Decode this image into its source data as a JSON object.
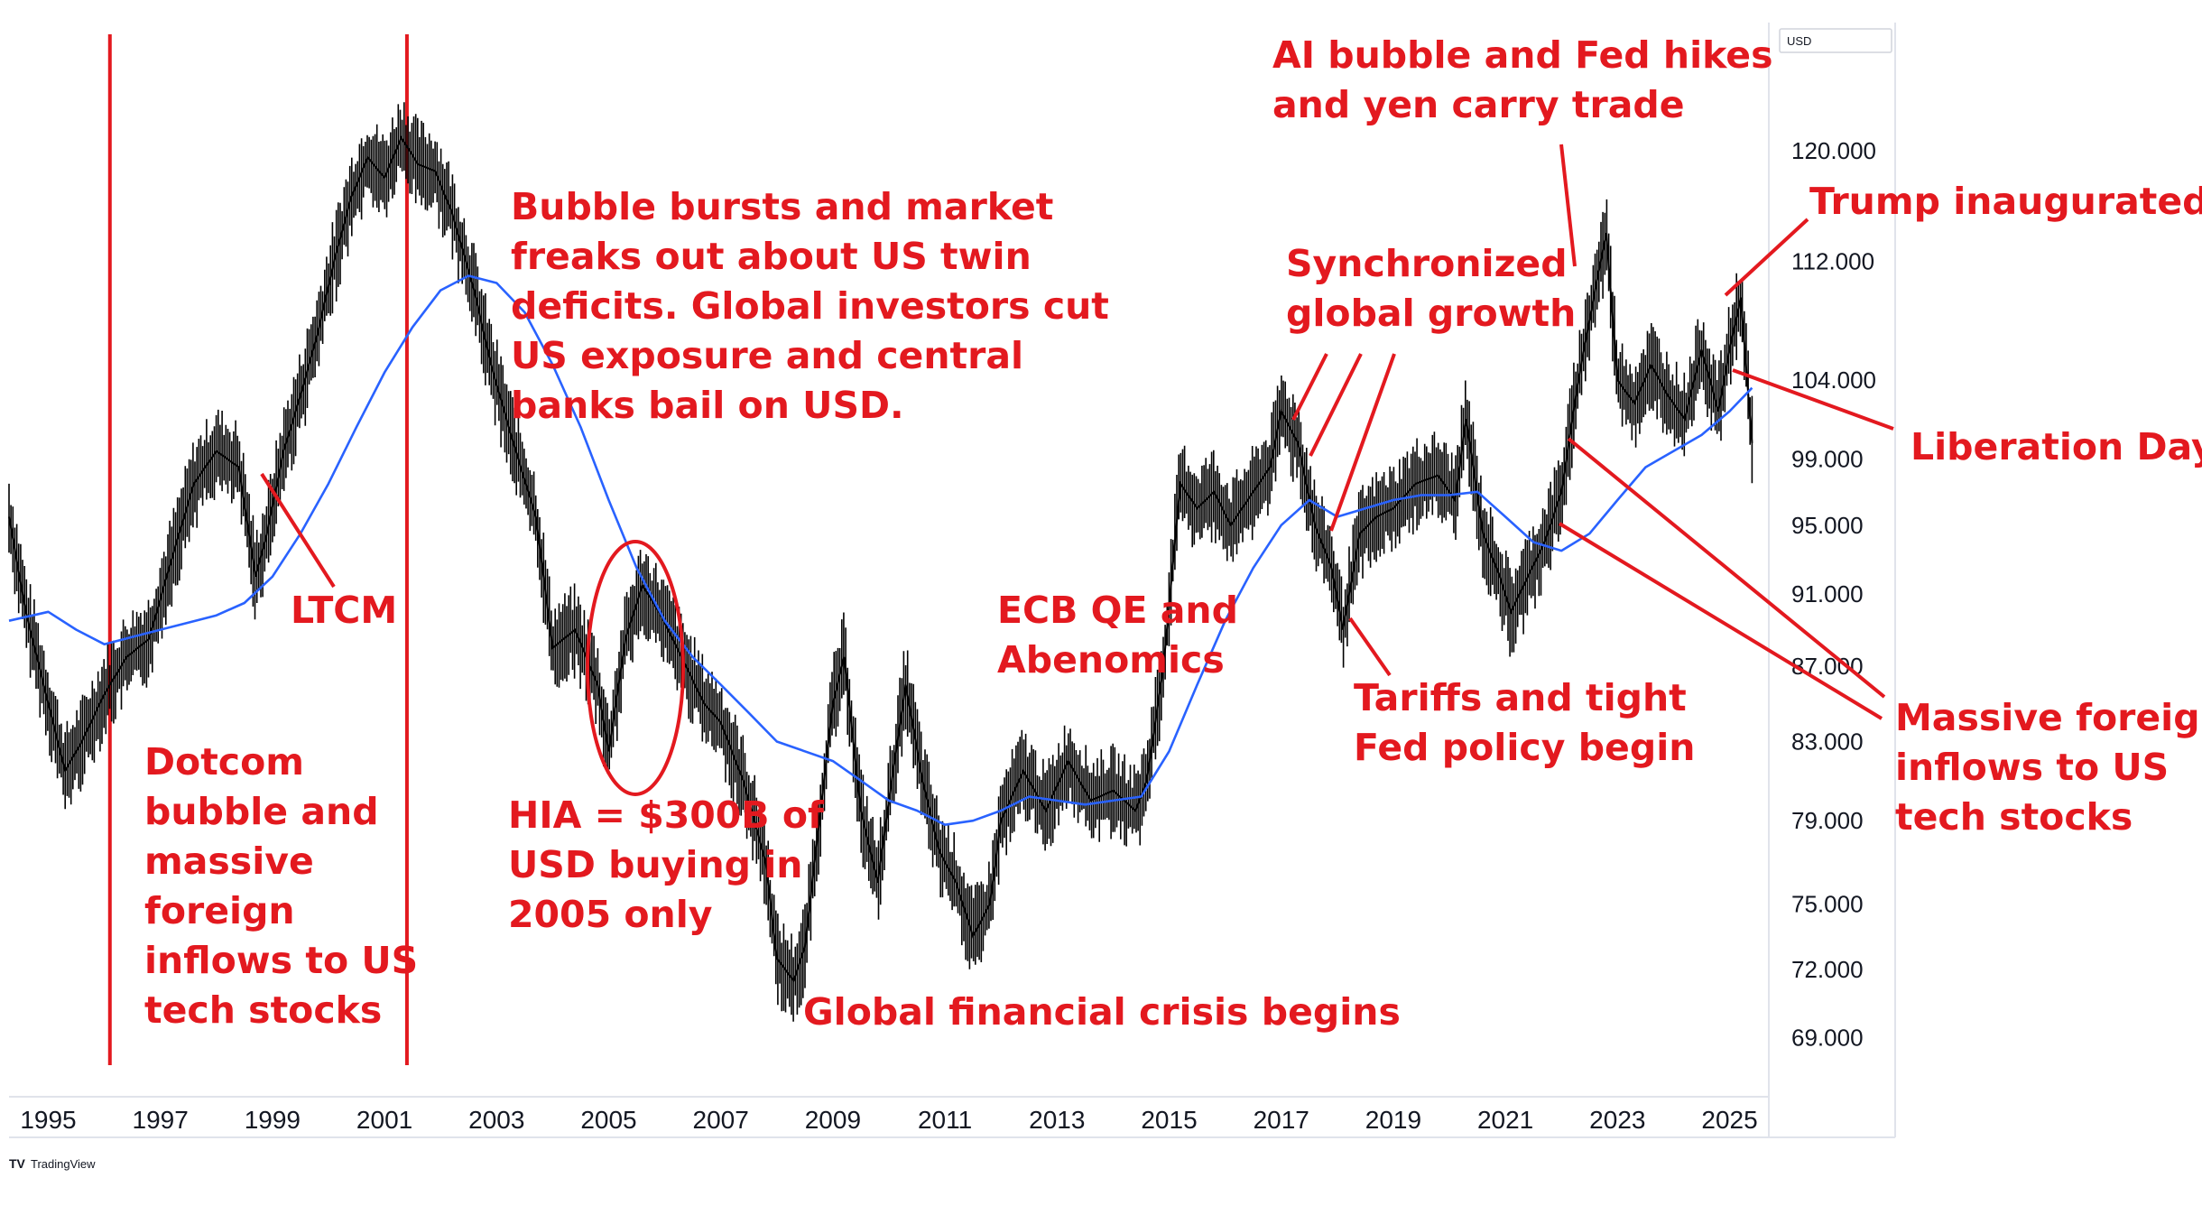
{
  "chart_data": {
    "type": "line",
    "unit_label": "USD",
    "brand": "TradingView",
    "y_axis": {
      "scale": "log",
      "ticks": [
        "120.000",
        "112.000",
        "104.000",
        "99.000",
        "95.000",
        "91.000",
        "87.000",
        "83.000",
        "79.000",
        "75.000",
        "72.000",
        "69.000"
      ],
      "ylim": [
        66.5,
        130
      ]
    },
    "x_axis": {
      "ticks": [
        "1995",
        "1997",
        "1999",
        "2001",
        "2003",
        "2005",
        "2007",
        "2009",
        "2011",
        "2013",
        "2015",
        "2017",
        "2019",
        "2021",
        "2023",
        "2025"
      ],
      "xlim": [
        1994.3,
        2025.7
      ]
    },
    "series": [
      {
        "kind": "price",
        "color": "#000000",
        "x": [
          1994.3,
          1994.6,
          1995.0,
          1995.3,
          1995.6,
          1996.0,
          1996.4,
          1996.8,
          1997.2,
          1997.6,
          1998.0,
          1998.4,
          1998.7,
          1998.9,
          1999.2,
          1999.5,
          1999.8,
          2000.1,
          2000.4,
          2000.7,
          2001.0,
          2001.3,
          2001.6,
          2001.9,
          2002.2,
          2002.6,
          2002.9,
          2003.3,
          2003.7,
          2004.0,
          2004.4,
          2004.8,
          2005.0,
          2005.3,
          2005.6,
          2005.9,
          2006.3,
          2006.7,
          2007.0,
          2007.4,
          2007.8,
          2008.0,
          2008.3,
          2008.5,
          2008.8,
          2009.0,
          2009.2,
          2009.5,
          2009.8,
          2010.0,
          2010.3,
          2010.6,
          2010.9,
          2011.2,
          2011.5,
          2011.8,
          2012.0,
          2012.4,
          2012.8,
          2013.2,
          2013.6,
          2014.0,
          2014.4,
          2014.6,
          2014.9,
          2015.2,
          2015.5,
          2015.8,
          2016.1,
          2016.4,
          2016.8,
          2017.0,
          2017.3,
          2017.6,
          2017.9,
          2018.1,
          2018.4,
          2018.7,
          2019.0,
          2019.4,
          2019.8,
          2020.1,
          2020.3,
          2020.6,
          2020.9,
          2021.1,
          2021.4,
          2021.7,
          2022.0,
          2022.3,
          2022.6,
          2022.8,
          2023.0,
          2023.3,
          2023.6,
          2023.9,
          2024.2,
          2024.5,
          2024.8,
          2025.0,
          2025.2,
          2025.4
        ],
        "y": [
          95.5,
          90.0,
          85.0,
          81.5,
          83.0,
          85.5,
          87.5,
          88.5,
          93.0,
          97.5,
          99.5,
          98.5,
          92.0,
          94.5,
          99.5,
          103.0,
          107.0,
          112.0,
          116.5,
          119.5,
          118.0,
          121.0,
          119.0,
          118.5,
          115.5,
          110.0,
          105.0,
          100.0,
          95.5,
          88.0,
          89.0,
          86.0,
          82.5,
          88.5,
          91.5,
          90.0,
          87.5,
          85.0,
          84.0,
          81.0,
          77.0,
          72.5,
          71.5,
          73.0,
          80.0,
          85.0,
          87.5,
          79.5,
          76.0,
          80.0,
          86.0,
          81.0,
          77.5,
          76.0,
          73.5,
          75.0,
          79.0,
          81.5,
          79.5,
          82.0,
          80.0,
          80.5,
          79.5,
          81.0,
          87.0,
          97.5,
          96.0,
          97.0,
          95.0,
          96.5,
          98.5,
          102.0,
          100.0,
          95.0,
          92.5,
          89.0,
          94.5,
          95.5,
          96.0,
          97.5,
          98.0,
          96.5,
          101.5,
          94.5,
          92.0,
          90.0,
          92.0,
          94.0,
          97.0,
          104.0,
          110.0,
          114.0,
          104.0,
          102.5,
          105.0,
          103.0,
          101.5,
          106.0,
          102.0,
          106.0,
          109.5,
          100.0
        ]
      },
      {
        "kind": "moving-average",
        "color": "#2962ff",
        "x": [
          1994.3,
          1995.0,
          1995.5,
          1996.0,
          1996.5,
          1997.0,
          1997.5,
          1998.0,
          1998.5,
          1999.0,
          1999.5,
          2000.0,
          2000.5,
          2001.0,
          2001.5,
          2002.0,
          2002.5,
          2003.0,
          2003.5,
          2004.0,
          2004.5,
          2005.0,
          2005.5,
          2006.0,
          2006.5,
          2007.0,
          2007.5,
          2008.0,
          2008.5,
          2009.0,
          2009.5,
          2010.0,
          2010.5,
          2011.0,
          2011.5,
          2012.0,
          2012.5,
          2013.0,
          2013.5,
          2014.0,
          2014.5,
          2015.0,
          2015.5,
          2016.0,
          2016.5,
          2017.0,
          2017.5,
          2018.0,
          2018.5,
          2019.0,
          2019.5,
          2020.0,
          2020.5,
          2021.0,
          2021.5,
          2022.0,
          2022.5,
          2023.0,
          2023.5,
          2024.0,
          2024.5,
          2025.0,
          2025.4
        ],
        "y": [
          89.5,
          90.0,
          89.0,
          88.2,
          88.6,
          89.0,
          89.4,
          89.8,
          90.5,
          92.0,
          94.5,
          97.5,
          101.0,
          104.5,
          107.5,
          110.0,
          111.0,
          110.5,
          108.5,
          105.0,
          101.0,
          96.5,
          92.5,
          89.5,
          87.5,
          86.0,
          84.5,
          83.0,
          82.5,
          82.0,
          81.0,
          80.0,
          79.5,
          78.8,
          79.0,
          79.5,
          80.2,
          80.0,
          79.8,
          80.0,
          80.2,
          82.5,
          86.0,
          89.5,
          92.5,
          95.0,
          96.5,
          95.5,
          96.0,
          96.5,
          96.8,
          96.8,
          97.0,
          95.5,
          94.0,
          93.5,
          94.5,
          96.5,
          98.5,
          99.5,
          100.5,
          102.0,
          103.5
        ]
      }
    ],
    "vertical_markers": [
      1996.1,
      2001.4
    ],
    "annotations": [
      {
        "lines": [
          "AI bubble and Fed hikes",
          "and yen carry trade"
        ]
      },
      {
        "lines": [
          "Trump inaugurated"
        ]
      },
      {
        "lines": [
          "Bubble bursts and market",
          "freaks out about US twin",
          "deficits. Global investors cut",
          "US exposure and central",
          "banks bail on USD."
        ]
      },
      {
        "lines": [
          "Synchronized",
          "global growth"
        ]
      },
      {
        "lines": [
          "Liberation Day"
        ]
      },
      {
        "lines": [
          "LTCM"
        ]
      },
      {
        "lines": [
          "ECB QE and",
          "Abenomics"
        ]
      },
      {
        "lines": [
          "Tariffs and tight",
          "Fed policy begin"
        ]
      },
      {
        "lines": [
          "Massive foreign",
          "inflows to US",
          "tech stocks"
        ]
      },
      {
        "lines": [
          "Dotcom",
          "bubble and",
          "massive",
          "foreign",
          "inflows to US",
          "tech stocks"
        ]
      },
      {
        "lines": [
          "HIA = $300B of",
          "USD buying in",
          "2005 only"
        ]
      },
      {
        "lines": [
          "Global financial crisis begins"
        ]
      }
    ],
    "colors": {
      "price": "#000000",
      "moving_average": "#2962ff",
      "annotation": "#e3191f",
      "axis_text": "#131722"
    }
  }
}
